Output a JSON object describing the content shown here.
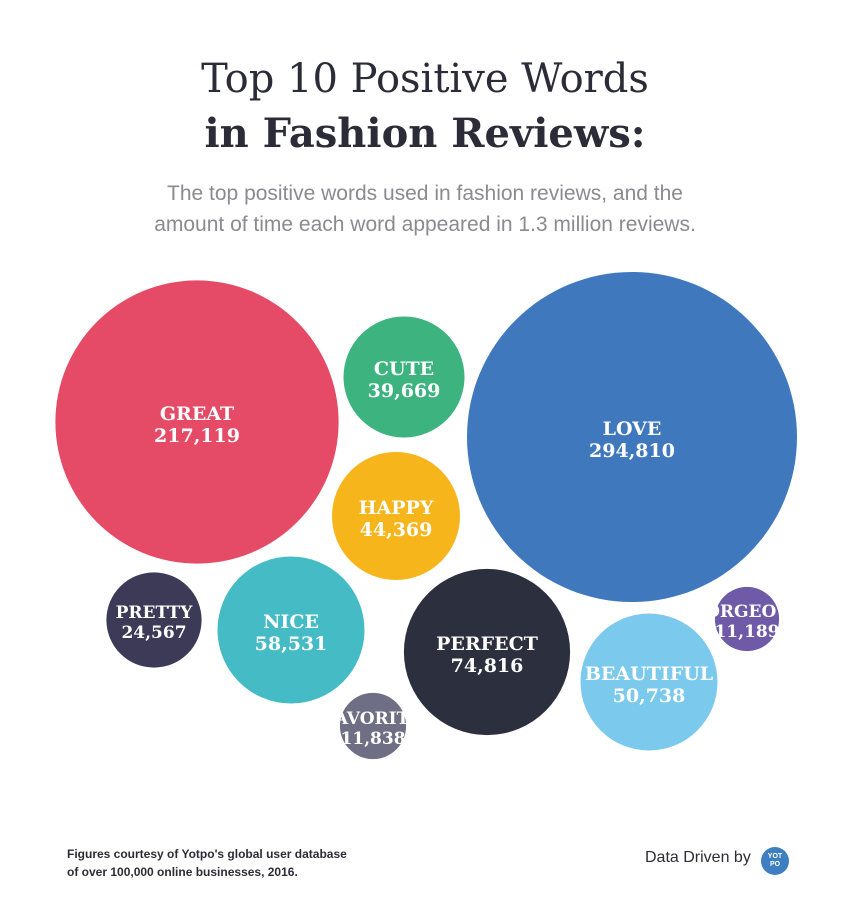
{
  "header": {
    "title_line1": "Top 10 Positive Words",
    "title_line2": "in Fashion Reviews:",
    "subtitle": "The top positive words used in fashion reviews, and the amount of time each word appeared in 1.3 million reviews."
  },
  "chart_data": {
    "type": "bubble",
    "title": "Top 10 Positive Words in Fashion Reviews:",
    "subtitle": "The top positive words used in fashion reviews, and the amount of time each word appeared in 1.3 million reviews.",
    "series": [
      {
        "name": "GREAT",
        "value": 217119,
        "label": "217,119",
        "color": "#e54b67"
      },
      {
        "name": "CUTE",
        "value": 39669,
        "label": "39,669",
        "color": "#3db37f"
      },
      {
        "name": "LOVE",
        "value": 294810,
        "label": "294,810",
        "color": "#3f78bc"
      },
      {
        "name": "HAPPY",
        "value": 44369,
        "label": "44,369",
        "color": "#f7b51c"
      },
      {
        "name": "PRETTY",
        "value": 24567,
        "label": "24,567",
        "color": "#3c3a57"
      },
      {
        "name": "NICE",
        "value": 58531,
        "label": "58,531",
        "color": "#45bcc5"
      },
      {
        "name": "PERFECT",
        "value": 74816,
        "label": "74,816",
        "color": "#2c2f3e"
      },
      {
        "name": "GORGEOUS",
        "value": 11189,
        "label": "11,189",
        "color": "#6e5aa6"
      },
      {
        "name": "BEAUTIFUL",
        "value": 50738,
        "label": "50,738",
        "color": "#7bc9ec"
      },
      {
        "name": "FAVORITE",
        "value": 11838,
        "label": "11,838",
        "color": "#6e6e85"
      }
    ]
  },
  "footer": {
    "note_line1": "Figures courtesy of Yotpo's global user database",
    "note_line2": "of over 100,000 online businesses, 2016.",
    "credit": "Data Driven by",
    "logo_line1": "YOT",
    "logo_line2": "PO"
  }
}
